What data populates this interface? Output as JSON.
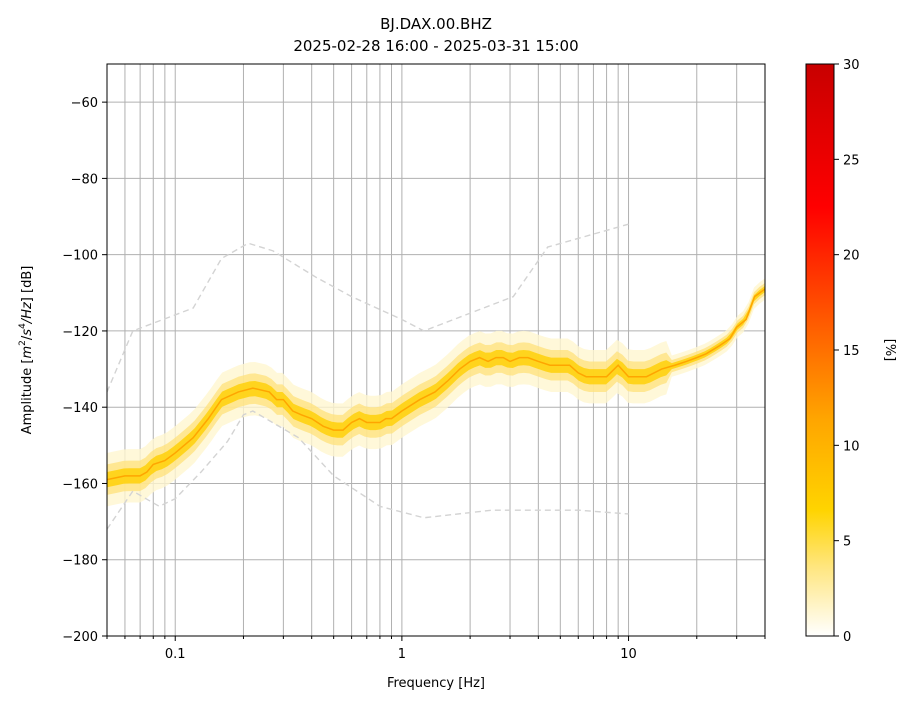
{
  "chart_data": {
    "type": "heatmap",
    "title": "BJ.DAX.00.BHZ",
    "subtitle": "2025-02-28 16:00 - 2025-03-31 15:00",
    "xlabel": "Frequency [Hz]",
    "ylabel": "Amplitude [m²/s⁴/Hz] [dB]",
    "xscale": "log",
    "xlim": [
      0.05,
      40
    ],
    "ylim": [
      -200,
      -50
    ],
    "grid": true,
    "x_tick_labels": [
      {
        "value": 0.1,
        "label": "0.1"
      },
      {
        "value": 1,
        "label": "1"
      },
      {
        "value": 10,
        "label": "10"
      }
    ],
    "y_ticks": [
      -60,
      -80,
      -100,
      -120,
      -140,
      -160,
      -180,
      -200
    ],
    "colorbar": {
      "label": "[%]",
      "range": [
        0,
        30
      ],
      "ticks": [
        0,
        5,
        10,
        15,
        20,
        25,
        30
      ],
      "colors": [
        "#ffffff",
        "#ffe680",
        "#ffd400",
        "#ffa500",
        "#ff5a00",
        "#ff0000",
        "#c80000"
      ]
    },
    "series": [
      {
        "role": "mode",
        "color": "#ffa500",
        "x": [
          0.05,
          0.06,
          0.07,
          0.075,
          0.08,
          0.09,
          0.1,
          0.12,
          0.14,
          0.16,
          0.19,
          0.22,
          0.26,
          0.28,
          0.3,
          0.33,
          0.36,
          0.4,
          0.45,
          0.5,
          0.55,
          0.6,
          0.65,
          0.7,
          0.75,
          0.8,
          0.85,
          0.9,
          1.0,
          1.2,
          1.4,
          1.6,
          1.8,
          2.0,
          2.2,
          2.4,
          2.6,
          2.8,
          3.0,
          3.3,
          3.6,
          4.0,
          4.5,
          5.0,
          5.5,
          6.0,
          6.5,
          7.0,
          8.0,
          9.0,
          10.0,
          12.0,
          14.0,
          16.0,
          18.0,
          20.0,
          22.0,
          25.0,
          28.0,
          30.0,
          33.0,
          36.0,
          40.0
        ],
        "y": [
          -159,
          -158,
          -158,
          -157,
          -155,
          -154,
          -152,
          -148,
          -143,
          -138,
          -136,
          -135,
          -136,
          -138,
          -138,
          -141,
          -142,
          -143,
          -145,
          -146,
          -146,
          -144,
          -143,
          -144,
          -144,
          -144,
          -143,
          -143,
          -141,
          -138,
          -136,
          -133,
          -130,
          -128,
          -127,
          -128,
          -127,
          -127,
          -128,
          -127,
          -127,
          -128,
          -129,
          -129,
          -129,
          -131,
          -132,
          -132,
          -132,
          -129,
          -132,
          -132,
          -130,
          -129,
          -128,
          -127,
          -126,
          -124,
          -122,
          -119,
          -117,
          -111,
          -109
        ]
      },
      {
        "role": "high-noise-model",
        "color": "#d3d3d3",
        "x": [
          0.05,
          0.065,
          0.12,
          0.16,
          0.21,
          0.27,
          0.42,
          0.6,
          1.0,
          1.25,
          3.1,
          4.4,
          10.0
        ],
        "y": [
          -136,
          -120,
          -114,
          -101,
          -97,
          -99,
          -106,
          -111,
          -117,
          -120,
          -111,
          -98,
          -92
        ]
      },
      {
        "role": "low-noise-model",
        "color": "#d3d3d3",
        "x": [
          0.05,
          0.065,
          0.085,
          0.1,
          0.13,
          0.17,
          0.2,
          0.22,
          0.35,
          0.5,
          0.8,
          1.25,
          2.5,
          6.0,
          10.0
        ],
        "y": [
          -172,
          -162,
          -166,
          -164,
          -157,
          -149,
          -142,
          -141,
          -148,
          -158,
          -166,
          -169,
          -167,
          -167,
          -168
        ]
      }
    ]
  }
}
